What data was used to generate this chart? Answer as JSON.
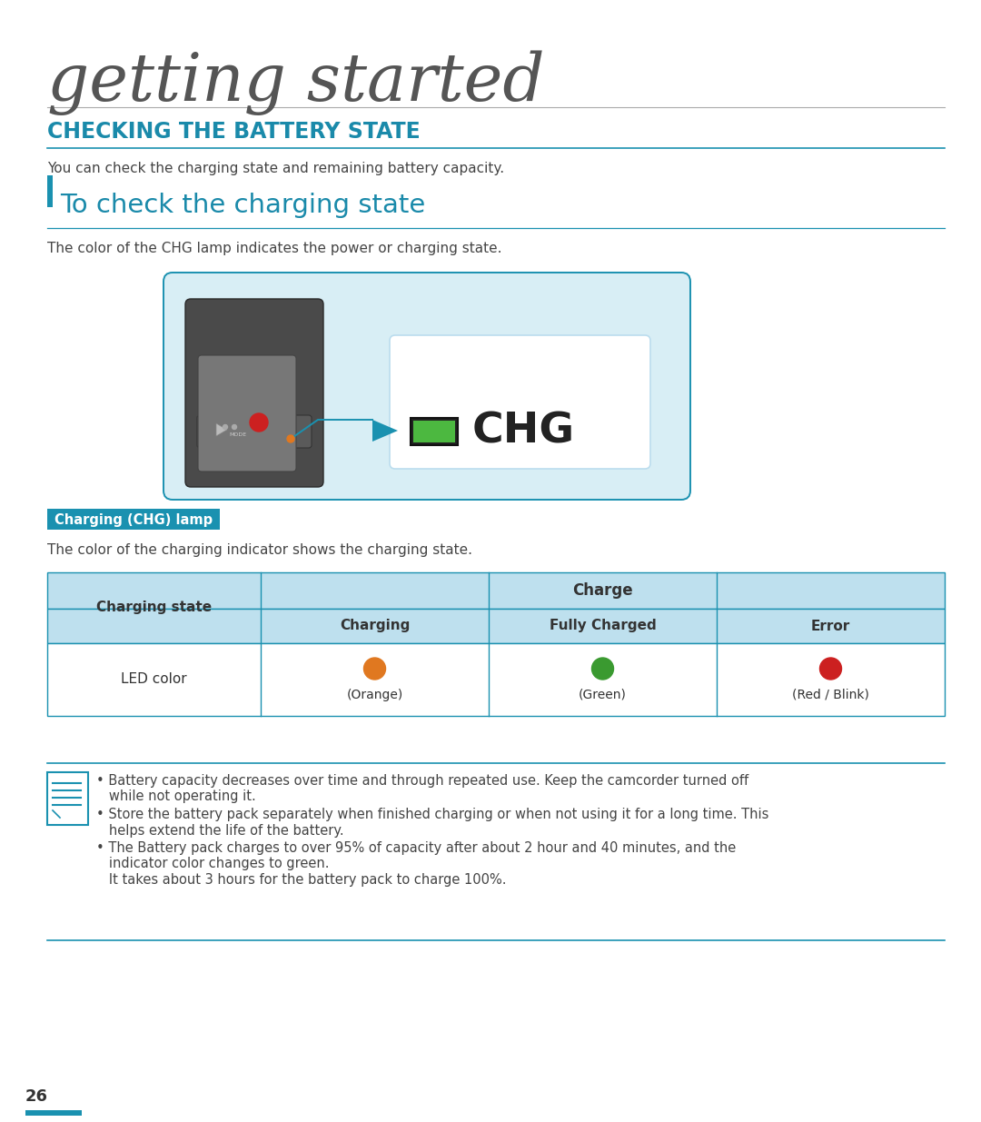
{
  "title_main": "getting started",
  "title_section": "CHECKING THE BATTERY STATE",
  "subtitle_desc": "You can check the charging state and remaining battery capacity.",
  "subsection_title": "To check the charging state",
  "subsection_desc": "The color of the CHG lamp indicates the power or charging state.",
  "chg_label": "CHG",
  "lamp_label": "Charging (CHG) lamp",
  "lamp_desc": "The color of the charging indicator shows the charging state.",
  "table_header_row1": "Charge",
  "table_col_left": "Charging state",
  "table_cols": [
    "Charging",
    "Fully Charged",
    "Error"
  ],
  "table_row_label": "LED color",
  "table_led_labels": [
    "(Orange)",
    "(Green)",
    "(Red / Blink)"
  ],
  "table_led_colors": [
    "#E07820",
    "#3A9A30",
    "#CC2020"
  ],
  "notes": [
    "Battery capacity decreases over time and through repeated use. Keep the camcorder turned off\nwhile not operating it.",
    "Store the battery pack separately when finished charging or when not using it for a long time. This\nhelps extend the life of the battery.",
    "The Battery pack charges to over 95% of capacity after about 2 hour and 40 minutes, and the\nindicator color changes to green.\nIt takes about 3 hours for the battery pack to charge 100%."
  ],
  "page_number": "26",
  "teal_color": "#1A91B0",
  "light_blue_bg": "#D8EEF5",
  "table_header_bg": "#BEE0EE",
  "title_line_color": "#AAAAAA",
  "section_title_color": "#1A8AAA",
  "body_text_color": "#444444"
}
